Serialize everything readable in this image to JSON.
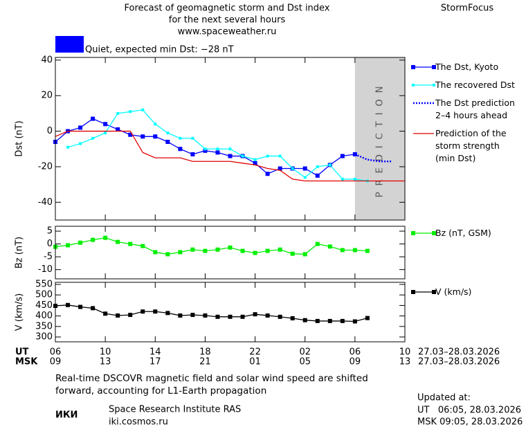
{
  "header": {
    "title_lines": [
      "Forecast of geomagnetic storm and Dst index",
      "for the next several hours",
      "www.spaceweather.ru"
    ],
    "brand": "StormFocus"
  },
  "status": {
    "text": "Quiet, expected min Dst: −28 nT",
    "color": "#0000ff"
  },
  "chart_data": [
    {
      "type": "line",
      "ylabel": "Dst (nT)",
      "xlim": [
        0,
        28
      ],
      "xticks": [
        0,
        4,
        8,
        12,
        16,
        20,
        24,
        28
      ],
      "ylim": [
        -50,
        41.5
      ],
      "yticks": [
        -40,
        -20,
        0,
        20,
        40
      ],
      "shade": {
        "x": [
          24,
          28
        ],
        "label": "PREDICTION",
        "color": "#d3d3d3"
      },
      "series": [
        {
          "name": "The Dst, Kyoto",
          "color": "#0000ff",
          "marker": "square",
          "style": "solid",
          "x": [
            0,
            1,
            2,
            3,
            4,
            5,
            6,
            7,
            8,
            9,
            10,
            11,
            12,
            13,
            14,
            15,
            16,
            17,
            18,
            19,
            20,
            21,
            22,
            23,
            24
          ],
          "values": [
            -6,
            0,
            2,
            7,
            4,
            1,
            -2,
            -3,
            -3,
            -6,
            -10,
            -13,
            -11,
            -12,
            -14,
            -14,
            -18,
            -24,
            -21,
            -21,
            -21,
            -25,
            -19,
            -14,
            -13
          ]
        },
        {
          "name": "The recovered Dst",
          "color": "#00ffff",
          "marker": "small-square",
          "style": "solid",
          "x": [
            1,
            2,
            3,
            4,
            5,
            6,
            7,
            8,
            9,
            10,
            11,
            12,
            13,
            14,
            15,
            16,
            17,
            18,
            19,
            20,
            21,
            22,
            23,
            24,
            25
          ],
          "values": [
            -9,
            -7,
            -4,
            -1,
            10,
            11,
            12,
            4,
            -1,
            -4,
            -4,
            -10,
            -10,
            -10,
            -14,
            -16,
            -14,
            -14,
            -21,
            -26,
            -20,
            -19,
            -27,
            -27,
            -28
          ]
        },
        {
          "name": "The Dst prediction\n2–4 hours ahead",
          "color": "#0000ff",
          "marker": "none",
          "style": "dotted",
          "x": [
            24,
            25,
            26,
            27
          ],
          "values": [
            -13,
            -16,
            -17,
            -17
          ]
        },
        {
          "name": "Prediction of the\nstorm strength\n(min Dst)",
          "color": "#e00000",
          "marker": "none",
          "style": "solid",
          "x": [
            0,
            1,
            2,
            3,
            4,
            5,
            6,
            7,
            8,
            9,
            10,
            11,
            12,
            13,
            14,
            15,
            16,
            17,
            18,
            19,
            20,
            21,
            22,
            23,
            24,
            25,
            26,
            27,
            28
          ],
          "values": [
            -3,
            0,
            0,
            0,
            0,
            0,
            0,
            -12,
            -15,
            -15,
            -15,
            -17,
            -17,
            -17,
            -17,
            -18,
            -19,
            -21,
            -22,
            -27,
            -28,
            -28,
            -28,
            -28,
            -28,
            -28,
            -28,
            -28,
            -28
          ]
        }
      ]
    },
    {
      "type": "line",
      "ylabel": "Bz (nT)",
      "xlim": [
        0,
        28
      ],
      "xticks": [
        0,
        4,
        8,
        12,
        16,
        20,
        24,
        28
      ],
      "ylim": [
        -13.6,
        6.9
      ],
      "yticks": [
        -10,
        -5,
        0,
        5
      ],
      "series": [
        {
          "name": "Bz (nT, GSM)",
          "color": "#00ee00",
          "marker": "square",
          "style": "solid",
          "x": [
            0,
            1,
            2,
            3,
            4,
            5,
            6,
            7,
            8,
            9,
            10,
            11,
            12,
            13,
            14,
            15,
            16,
            17,
            18,
            19,
            20,
            21,
            22,
            23,
            24,
            25
          ],
          "values": [
            -1.1,
            -0.5,
            0.5,
            1.6,
            2.4,
            0.8,
            0,
            -0.8,
            -3.2,
            -4,
            -3.2,
            -2.2,
            -2.7,
            -2.2,
            -1.4,
            -2.7,
            -3.5,
            -2.7,
            -2.2,
            -3.8,
            -4,
            0,
            -1,
            -2.4,
            -2.4,
            -2.7
          ]
        }
      ]
    },
    {
      "type": "line",
      "ylabel": "V (km/s)",
      "xlim": [
        0,
        28
      ],
      "xticks": [
        0,
        4,
        8,
        12,
        16,
        20,
        24,
        28
      ],
      "ylim": [
        277,
        560
      ],
      "yticks": [
        300,
        350,
        400,
        450,
        500,
        550
      ],
      "series": [
        {
          "name": "V (km/s)",
          "color": "#000000",
          "marker": "square",
          "style": "solid",
          "x": [
            0,
            1,
            2,
            3,
            4,
            5,
            6,
            7,
            8,
            9,
            10,
            11,
            12,
            13,
            14,
            15,
            16,
            17,
            18,
            19,
            20,
            21,
            22,
            23,
            24,
            25
          ],
          "values": [
            448,
            452,
            443,
            437,
            411,
            402,
            405,
            421,
            421,
            414,
            402,
            405,
            402,
            396,
            396,
            396,
            408,
            402,
            396,
            389,
            380,
            376,
            376,
            376,
            374,
            390
          ]
        }
      ]
    }
  ],
  "time_axis": {
    "rows": [
      {
        "label": "UT",
        "ticks": [
          {
            "value": 0,
            "label": "06"
          },
          {
            "value": 4,
            "label": "10"
          },
          {
            "value": 8,
            "label": "14"
          },
          {
            "value": 12,
            "label": "18"
          },
          {
            "value": 16,
            "label": "22"
          },
          {
            "value": 20,
            "label": "02"
          },
          {
            "value": 24,
            "label": "06"
          },
          {
            "value": 28,
            "label": "10"
          }
        ],
        "range": "27.03–28.03.2026"
      },
      {
        "label": "MSK",
        "ticks": [
          {
            "value": 0,
            "label": "09"
          },
          {
            "value": 4,
            "label": "13"
          },
          {
            "value": 8,
            "label": "17"
          },
          {
            "value": 12,
            "label": "21"
          },
          {
            "value": 16,
            "label": "01"
          },
          {
            "value": 20,
            "label": "05"
          },
          {
            "value": 24,
            "label": "09"
          },
          {
            "value": 28,
            "label": "13"
          }
        ],
        "range": "27.03–28.03.2026"
      }
    ]
  },
  "footer": {
    "note": "Real-time DSCOVR magnetic field and solar wind speed are shifted\nforward, accounting for L1-Earth propagation",
    "logo": "ИКИ",
    "institute": "Space Research Institute RAS",
    "site": "iki.cosmos.ru",
    "updated_title": "Updated at:",
    "updated_ut": "UT   06:05, 28.03.2026",
    "updated_msk": "MSK 09:05, 28.03.2026"
  }
}
